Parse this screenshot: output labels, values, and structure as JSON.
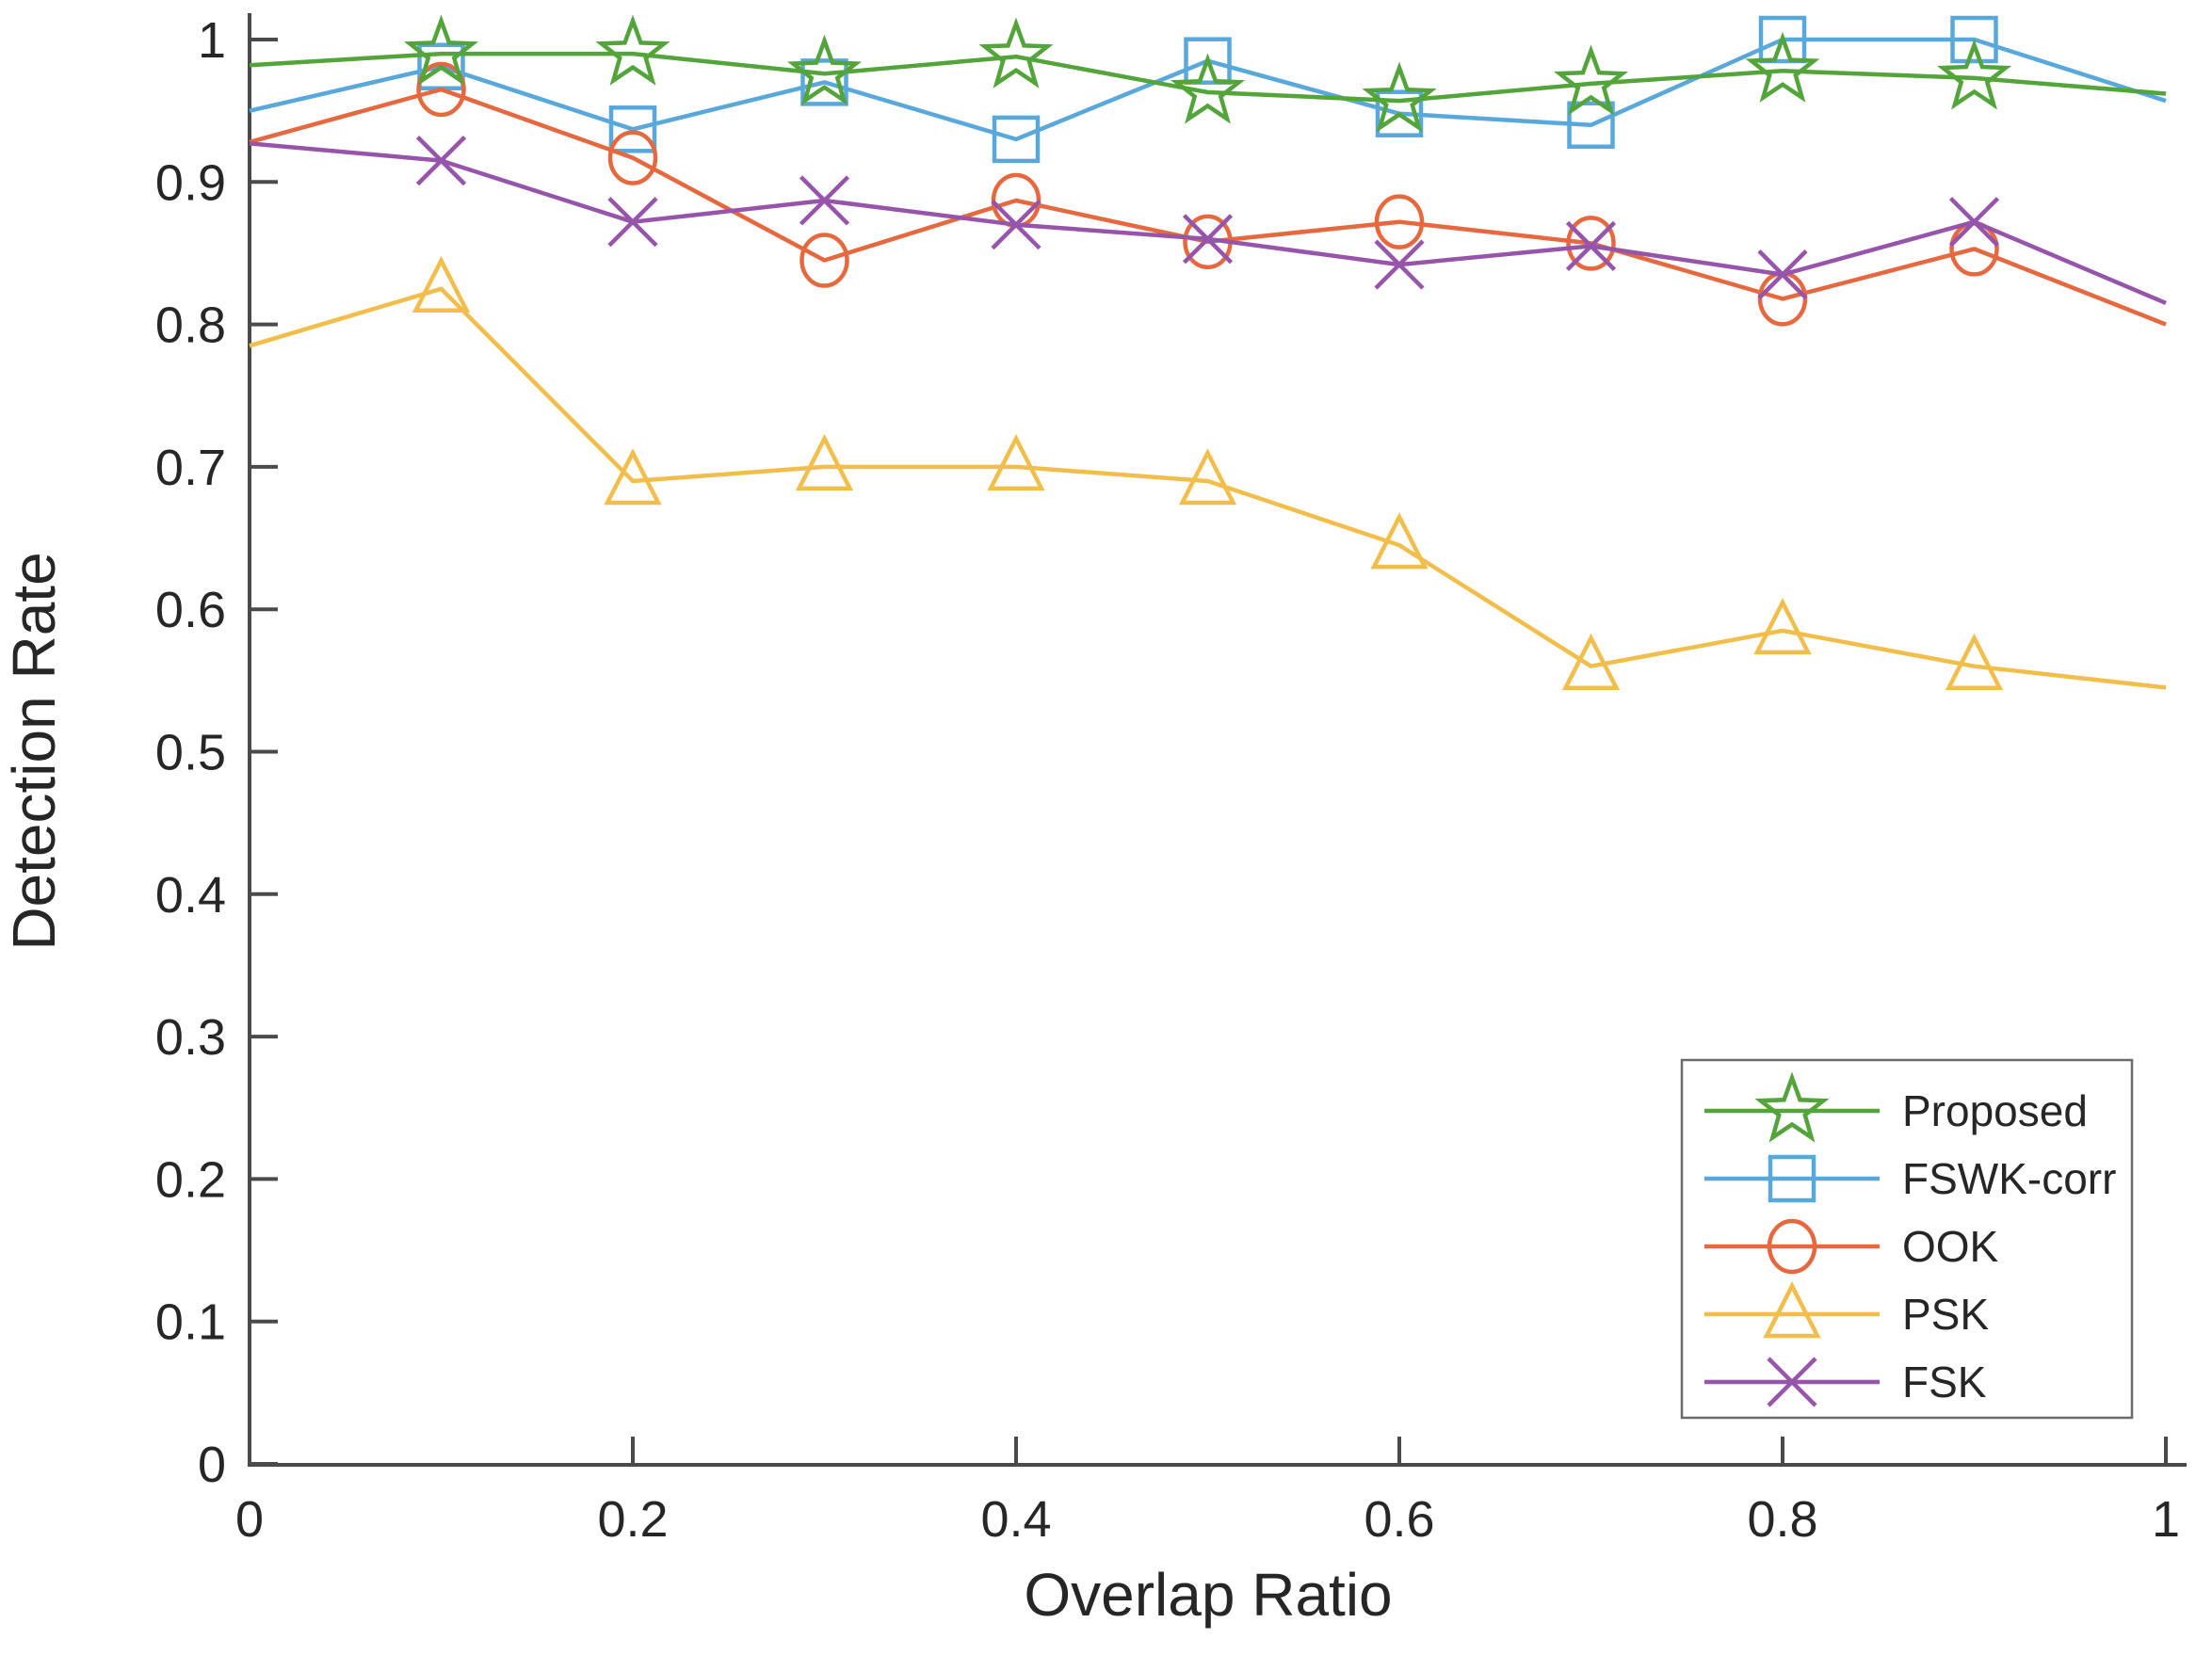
{
  "chart_data": {
    "type": "line",
    "title": "",
    "xlabel": "Overlap Ratio",
    "ylabel": "Detection Rate",
    "xlim": [
      0,
      1
    ],
    "ylim": [
      0,
      1
    ],
    "grid": false,
    "legend_position": "lower right",
    "markers_on_endpoints": false,
    "x": [
      0,
      0.1,
      0.2,
      0.3,
      0.4,
      0.5,
      0.6,
      0.7,
      0.8,
      0.9,
      1.0
    ],
    "x_tick_labels": [
      "0",
      "0.2",
      "0.4",
      "0.6",
      "0.8",
      "1"
    ],
    "x_tick_values": [
      0,
      0.2,
      0.4,
      0.6,
      0.8,
      1
    ],
    "y_tick_labels": [
      "0",
      "0.1",
      "0.2",
      "0.3",
      "0.4",
      "0.5",
      "0.6",
      "0.7",
      "0.8",
      "0.9",
      "1"
    ],
    "y_tick_values": [
      0,
      0.1,
      0.2,
      0.3,
      0.4,
      0.5,
      0.6,
      0.7,
      0.8,
      0.9,
      1
    ],
    "series": [
      {
        "name": "Proposed",
        "marker": "star",
        "color": "#53A43B",
        "values": [
          0.982,
          0.99,
          0.99,
          0.976,
          0.988,
          0.963,
          0.957,
          0.969,
          0.978,
          0.973,
          0.962
        ]
      },
      {
        "name": "FSWK-corr",
        "marker": "square",
        "color": "#58A8DC",
        "values": [
          0.95,
          0.981,
          0.937,
          0.97,
          0.93,
          0.985,
          0.948,
          0.94,
          1.0,
          1.0,
          0.957
        ]
      },
      {
        "name": "OOK",
        "marker": "circle",
        "color": "#E5683F",
        "values": [
          0.928,
          0.965,
          0.917,
          0.845,
          0.887,
          0.858,
          0.872,
          0.857,
          0.818,
          0.853,
          0.8
        ]
      },
      {
        "name": "PSK",
        "marker": "triangle",
        "color": "#F2BE4B",
        "values": [
          0.785,
          0.825,
          0.69,
          0.7,
          0.7,
          0.69,
          0.645,
          0.56,
          0.585,
          0.56,
          0.545
        ]
      },
      {
        "name": "FSK",
        "marker": "x",
        "color": "#9655AA",
        "values": [
          0.927,
          0.915,
          0.872,
          0.887,
          0.87,
          0.86,
          0.842,
          0.855,
          0.835,
          0.872,
          0.815
        ]
      }
    ],
    "colors": {
      "axis": "#4A4A4A",
      "text": "#262626",
      "legend_border": "#6B6B6B",
      "background": "#FFFFFF"
    }
  }
}
